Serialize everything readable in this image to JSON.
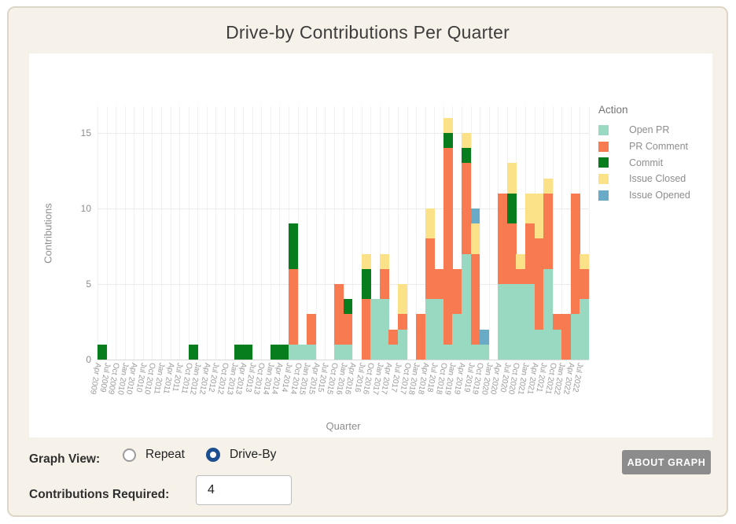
{
  "card": {
    "title": "Drive-by Contributions Per Quarter"
  },
  "chart_data": {
    "type": "bar",
    "stacked": true,
    "title": "Drive-by Contributions Per Quarter",
    "xlabel": "Quarter",
    "ylabel": "Contributions",
    "y_ticks": [
      0,
      5,
      10,
      15
    ],
    "ylim": [
      0,
      16.75
    ],
    "grid": true,
    "legend_title": "Action",
    "legend_position": "right",
    "categories": [
      "Apr 2009",
      "Jul 2009",
      "Oct 2009",
      "Jan 2010",
      "Apr 2010",
      "Jul 2010",
      "Oct 2010",
      "Jan 2011",
      "Apr 2011",
      "Jul 2011",
      "Oct 2011",
      "Jan 2012",
      "Apr 2012",
      "Jul 2012",
      "Oct 2012",
      "Jan 2013",
      "Apr 2013",
      "Jul 2013",
      "Oct 2013",
      "Jan 2014",
      "Apr 2014",
      "Jul 2014",
      "Oct 2014",
      "Jan 2015",
      "Apr 2015",
      "Jul 2015",
      "Oct 2015",
      "Jan 2016",
      "Apr 2016",
      "Jul 2016",
      "Oct 2016",
      "Jan 2017",
      "Apr 2017",
      "Jul 2017",
      "Oct 2017",
      "Jan 2018",
      "Apr 2018",
      "Jul 2018",
      "Oct 2018",
      "Jan 2019",
      "Apr 2019",
      "Jul 2019",
      "Oct 2019",
      "Jan 2020",
      "Apr 2020",
      "Jul 2020",
      "Oct 2020",
      "Jan 2021",
      "Apr 2021",
      "Jul 2021",
      "Oct 2021",
      "Jan 2022",
      "Apr 2022",
      "Jul 2022"
    ],
    "series": [
      {
        "name": "Open PR",
        "color": "#99d8c1",
        "values": [
          0,
          0,
          0,
          0,
          0,
          0,
          0,
          0,
          0,
          0,
          0,
          0,
          0,
          0,
          0,
          0,
          0,
          0,
          0,
          0,
          0,
          1,
          1,
          1,
          0,
          0,
          1,
          1,
          0,
          0,
          4,
          4,
          1,
          2,
          0,
          0,
          4,
          4,
          1,
          3,
          7,
          1,
          1,
          0,
          5,
          5,
          5,
          5,
          2,
          6,
          2,
          0,
          3,
          4
        ]
      },
      {
        "name": "PR Comment",
        "color": "#f87a50",
        "values": [
          0,
          0,
          0,
          0,
          0,
          0,
          0,
          0,
          0,
          0,
          0,
          0,
          0,
          0,
          0,
          0,
          0,
          0,
          0,
          0,
          0,
          5,
          0,
          2,
          0,
          0,
          4,
          2,
          0,
          4,
          0,
          2,
          1,
          1,
          0,
          3,
          4,
          2,
          13,
          3,
          6,
          6,
          0,
          0,
          6,
          4,
          1,
          4,
          6,
          5,
          1,
          3,
          8,
          2
        ]
      },
      {
        "name": "Commit",
        "color": "#087d1e",
        "values": [
          1,
          0,
          0,
          0,
          0,
          0,
          0,
          0,
          0,
          0,
          1,
          0,
          0,
          0,
          0,
          1,
          1,
          0,
          0,
          1,
          1,
          3,
          0,
          0,
          0,
          0,
          0,
          1,
          0,
          2,
          0,
          0,
          0,
          0,
          0,
          0,
          0,
          0,
          1,
          0,
          1,
          0,
          0,
          0,
          0,
          2,
          0,
          0,
          0,
          0,
          0,
          0,
          0,
          0
        ]
      },
      {
        "name": "Issue Closed",
        "color": "#fbe289",
        "values": [
          0,
          0,
          0,
          0,
          0,
          0,
          0,
          0,
          0,
          0,
          0,
          0,
          0,
          0,
          0,
          0,
          0,
          0,
          0,
          0,
          0,
          0,
          0,
          0,
          0,
          0,
          0,
          0,
          0,
          1,
          0,
          1,
          0,
          2,
          0,
          0,
          2,
          0,
          1,
          0,
          1,
          2,
          0,
          0,
          0,
          2,
          1,
          2,
          3,
          1,
          0,
          0,
          0,
          1
        ]
      },
      {
        "name": "Issue Opened",
        "color": "#69abc6",
        "values": [
          0,
          0,
          0,
          0,
          0,
          0,
          0,
          0,
          0,
          0,
          0,
          0,
          0,
          0,
          0,
          0,
          0,
          0,
          0,
          0,
          0,
          0,
          0,
          0,
          0,
          0,
          0,
          0,
          0,
          0,
          0,
          0,
          0,
          0,
          0,
          0,
          0,
          0,
          0,
          0,
          0,
          1,
          1,
          0,
          0,
          0,
          0,
          0,
          0,
          0,
          0,
          0,
          0,
          0
        ]
      }
    ]
  },
  "controls": {
    "graph_view_label": "Graph View:",
    "radio_options": [
      {
        "label": "Repeat",
        "selected": false
      },
      {
        "label": "Drive-By",
        "selected": true
      }
    ],
    "about_button_label": "ABOUT GRAPH",
    "contributions_label": "Contributions Required:",
    "contributions_value": "4"
  },
  "colors": {
    "open_pr": "#99d8c1",
    "pr_comment": "#f87a50",
    "commit": "#087d1e",
    "issue_closed": "#fbe289",
    "issue_opened": "#69abc6",
    "radio_selected": "#1c4f8f",
    "button_bg": "#8c8c8c",
    "card_bg": "#f7f2e9"
  }
}
